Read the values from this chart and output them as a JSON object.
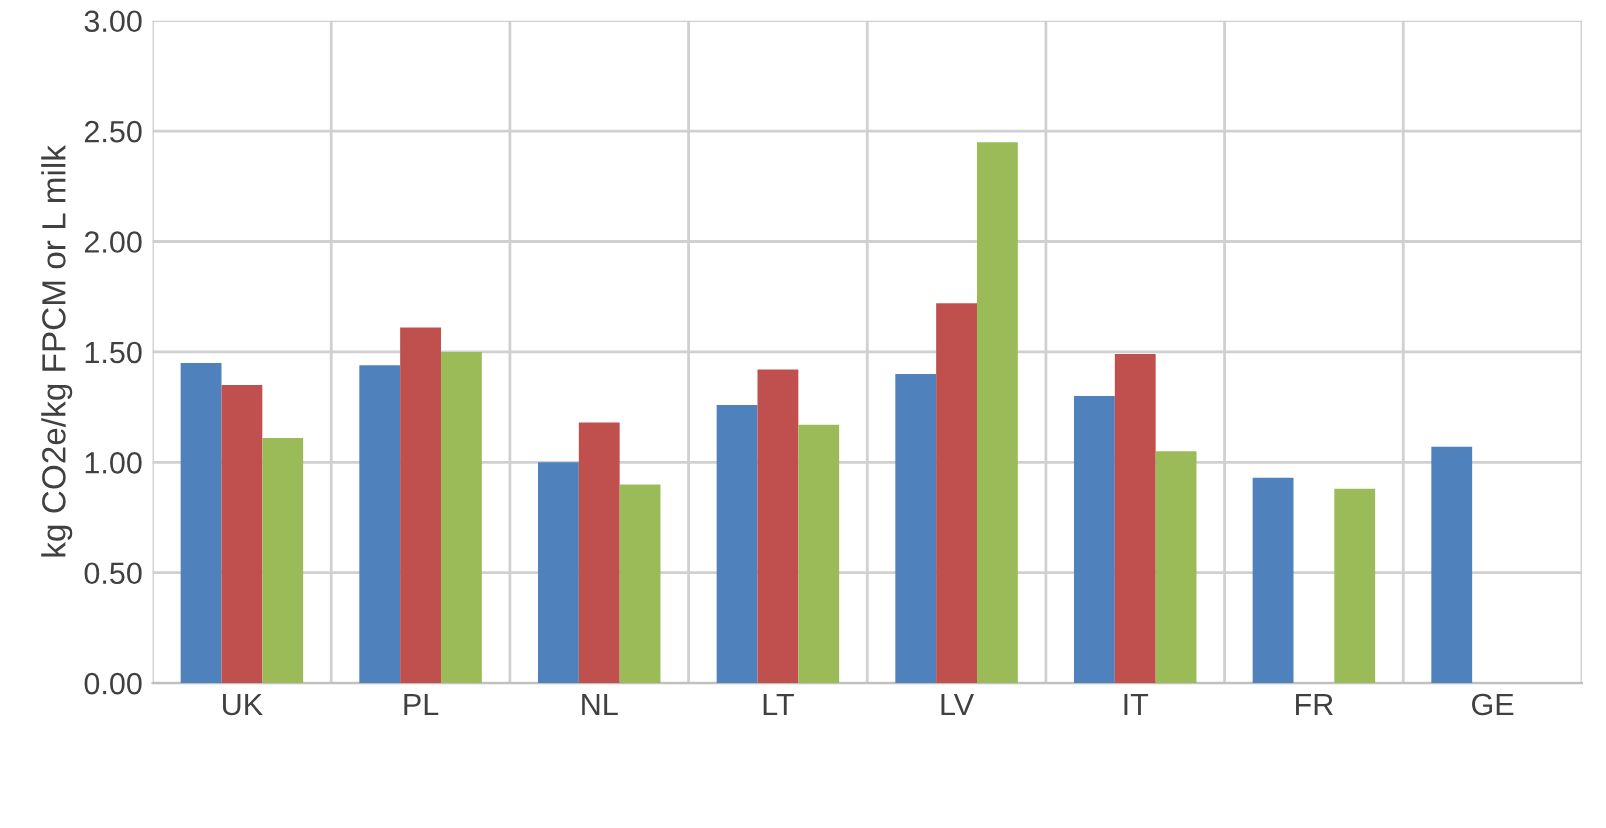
{
  "chart_data": {
    "type": "bar",
    "ylabel": "kg CO2e/kg FPCM or L milk",
    "categories": [
      "UK",
      "PL",
      "NL",
      "LT",
      "LV",
      "IT",
      "FR",
      "GE"
    ],
    "series": [
      {
        "color": "#4f81bd",
        "values": [
          1.45,
          1.44,
          1.0,
          1.26,
          1.4,
          1.3,
          0.93,
          1.07
        ]
      },
      {
        "color": "#c0504d",
        "values": [
          1.35,
          1.61,
          1.18,
          1.42,
          1.72,
          1.49,
          null,
          null
        ]
      },
      {
        "color": "#9bbb59",
        "values": [
          1.11,
          1.5,
          0.9,
          1.17,
          2.45,
          1.05,
          0.88,
          null
        ]
      }
    ],
    "ylim": [
      0,
      3
    ],
    "yticks": [
      {
        "value": 0,
        "label": "0.00"
      },
      {
        "value": 0.5,
        "label": "0.50"
      },
      {
        "value": 1,
        "label": "1.00"
      },
      {
        "value": 1.5,
        "label": "1.50"
      },
      {
        "value": 2,
        "label": "2.00"
      },
      {
        "value": 2.5,
        "label": "2.50"
      },
      {
        "value": 3,
        "label": "3.00"
      }
    ],
    "grid": true
  }
}
